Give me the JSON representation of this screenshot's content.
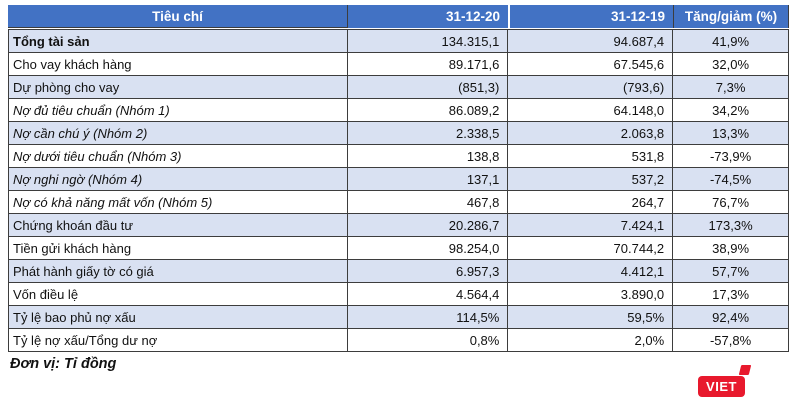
{
  "chart_data": {
    "type": "table",
    "columns": [
      "Tiêu chí",
      "31-12-20",
      "31-12-19",
      "Tăng/giảm (%)"
    ],
    "rows": [
      {
        "cells": [
          "Tổng tài sản",
          "134.315,1",
          "94.687,4",
          "41,9%"
        ],
        "style": "bold"
      },
      {
        "cells": [
          "Cho vay khách hàng",
          "89.171,6",
          "67.545,6",
          "32,0%"
        ],
        "style": "normal"
      },
      {
        "cells": [
          "Dự phòng cho vay",
          "(851,3)",
          "(793,6)",
          "7,3%"
        ],
        "style": "normal"
      },
      {
        "cells": [
          "Nợ đủ tiêu chuẩn (Nhóm 1)",
          "86.089,2",
          "64.148,0",
          "34,2%"
        ],
        "style": "italic"
      },
      {
        "cells": [
          "Nợ cần chú ý (Nhóm 2)",
          "2.338,5",
          "2.063,8",
          "13,3%"
        ],
        "style": "italic"
      },
      {
        "cells": [
          "Nợ dưới tiêu chuẩn (Nhóm 3)",
          "138,8",
          "531,8",
          "-73,9%"
        ],
        "style": "italic"
      },
      {
        "cells": [
          "Nợ nghi ngờ (Nhóm 4)",
          "137,1",
          "537,2",
          "-74,5%"
        ],
        "style": "italic"
      },
      {
        "cells": [
          "Nợ có khả năng mất vốn (Nhóm 5)",
          "467,8",
          "264,7",
          "76,7%"
        ],
        "style": "italic"
      },
      {
        "cells": [
          "Chứng khoán đầu tư",
          "20.286,7",
          "7.424,1",
          "173,3%"
        ],
        "style": "normal"
      },
      {
        "cells": [
          "Tiền gửi khách hàng",
          "98.254,0",
          "70.744,2",
          "38,9%"
        ],
        "style": "normal"
      },
      {
        "cells": [
          "Phát hành giấy tờ có giá",
          "6.957,3",
          "4.412,1",
          "57,7%"
        ],
        "style": "normal"
      },
      {
        "cells": [
          "Vốn điều lệ",
          "4.564,4",
          "3.890,0",
          "17,3%"
        ],
        "style": "normal"
      },
      {
        "cells": [
          "Tỷ lệ bao phủ nợ xấu",
          "114,5%",
          "59,5%",
          "92,4%"
        ],
        "style": "normal"
      },
      {
        "cells": [
          "Tỷ lệ nợ xấu/Tổng dư nợ",
          "0,8%",
          "2,0%",
          "-57,8%"
        ],
        "style": "normal"
      }
    ],
    "unit_note": "Đơn vị: Tỉ đồng",
    "layout": {
      "zebra_striping": "odd-rows-shaded",
      "grid": "on"
    }
  },
  "logo": {
    "text": "VIET"
  },
  "colors": {
    "header_bg": "#4272C4",
    "header_text": "#FFFFFF",
    "row_alt_bg": "#D9E1F2",
    "row_bg": "#FFFFFF",
    "border": "#3d3d3d",
    "logo_red": "#E8192D"
  }
}
